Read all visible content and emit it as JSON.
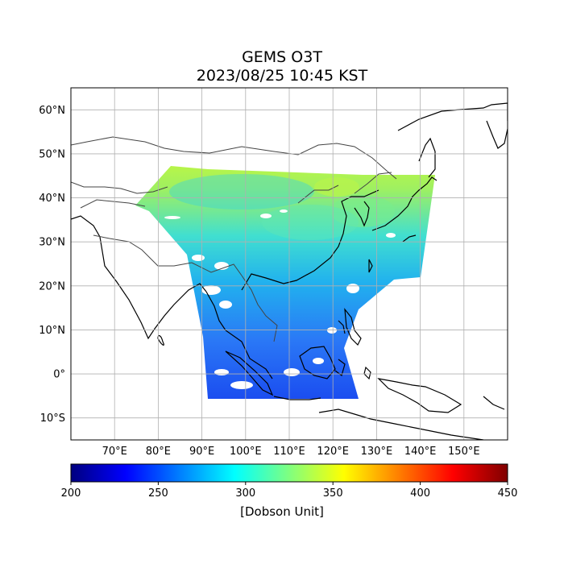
{
  "title": {
    "line1": "GEMS O3T",
    "line2": "2023/08/25 10:45 KST"
  },
  "map": {
    "lon_range": [
      60,
      160
    ],
    "lat_range": [
      -15,
      65
    ],
    "lat_ticks": [
      {
        "value": 60,
        "label": "60°N"
      },
      {
        "value": 50,
        "label": "50°N"
      },
      {
        "value": 40,
        "label": "40°N"
      },
      {
        "value": 30,
        "label": "30°N"
      },
      {
        "value": 20,
        "label": "20°N"
      },
      {
        "value": 10,
        "label": "10°N"
      },
      {
        "value": 0,
        "label": "0°"
      },
      {
        "value": -10,
        "label": "10°S"
      }
    ],
    "lon_ticks": [
      {
        "value": 70,
        "label": "70°E"
      },
      {
        "value": 80,
        "label": "80°E"
      },
      {
        "value": 90,
        "label": "90°E"
      },
      {
        "value": 100,
        "label": "100°E"
      },
      {
        "value": 110,
        "label": "110°E"
      },
      {
        "value": 120,
        "label": "120°E"
      },
      {
        "value": 130,
        "label": "130°E"
      },
      {
        "value": 140,
        "label": "140°E"
      },
      {
        "value": 150,
        "label": "150°E"
      }
    ],
    "grid": true
  },
  "colorbar": {
    "min": 200,
    "max": 450,
    "ticks": [
      "200",
      "250",
      "300",
      "350",
      "400",
      "450"
    ],
    "label": "[Dobson Unit]",
    "colormap": "jet"
  }
}
